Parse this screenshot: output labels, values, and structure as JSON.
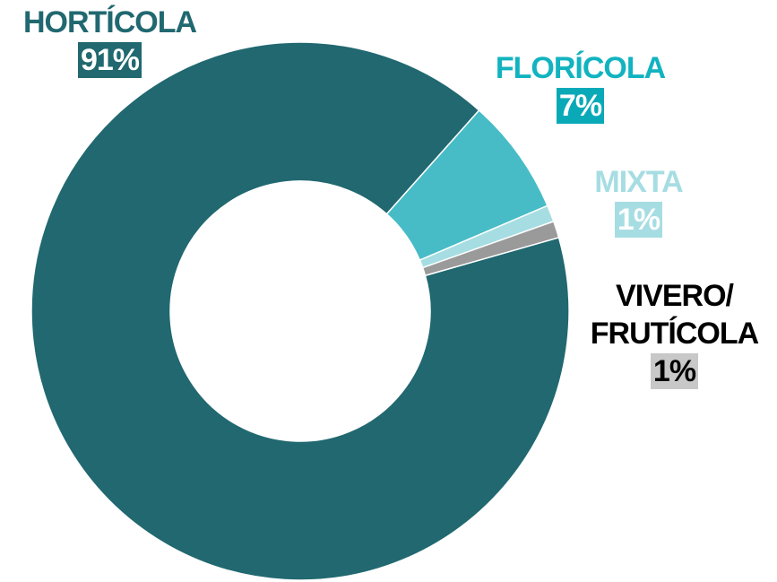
{
  "chart_data": {
    "type": "donut",
    "categories": [
      "HORTÍCOLA",
      "FLORÍCOLA",
      "MIXTA",
      "VIVERO/ FRUTÍCOLA"
    ],
    "values": [
      91,
      7,
      1,
      1
    ],
    "value_labels": [
      "91%",
      "7%",
      "1%",
      "1%"
    ],
    "colors": [
      "#216870",
      "#47bcc6",
      "#a6dde3",
      "#9a9a9a"
    ]
  }
}
